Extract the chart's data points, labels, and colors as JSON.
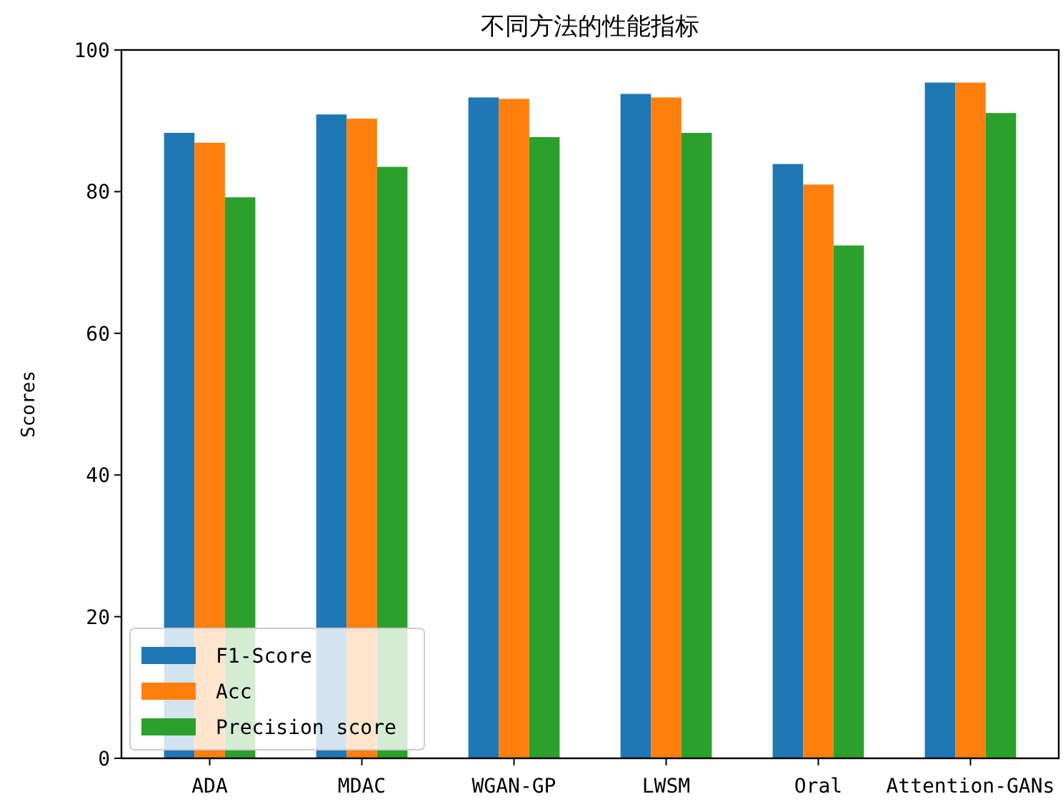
{
  "chart_data": {
    "type": "bar",
    "title": "不同方法的性能指标",
    "ylabel": "Scores",
    "categories": [
      "ADA",
      "MDAC",
      "WGAN-GP",
      "LWSM",
      "Oral",
      "Attention-GANs"
    ],
    "series": [
      {
        "name": "F1-Score",
        "color": "#1f77b4",
        "values": [
          88.3,
          90.9,
          93.3,
          93.8,
          83.9,
          95.4
        ]
      },
      {
        "name": "Acc",
        "color": "#ff7f0e",
        "values": [
          86.9,
          90.3,
          93.1,
          93.3,
          81.0,
          95.4
        ]
      },
      {
        "name": "Precision score",
        "color": "#2ca02c",
        "values": [
          79.2,
          83.5,
          87.7,
          88.3,
          72.4,
          91.1
        ]
      }
    ],
    "ylim": [
      0,
      100
    ],
    "yticks": [
      0,
      20,
      40,
      60,
      80,
      100
    ],
    "legend": "bottom left"
  }
}
